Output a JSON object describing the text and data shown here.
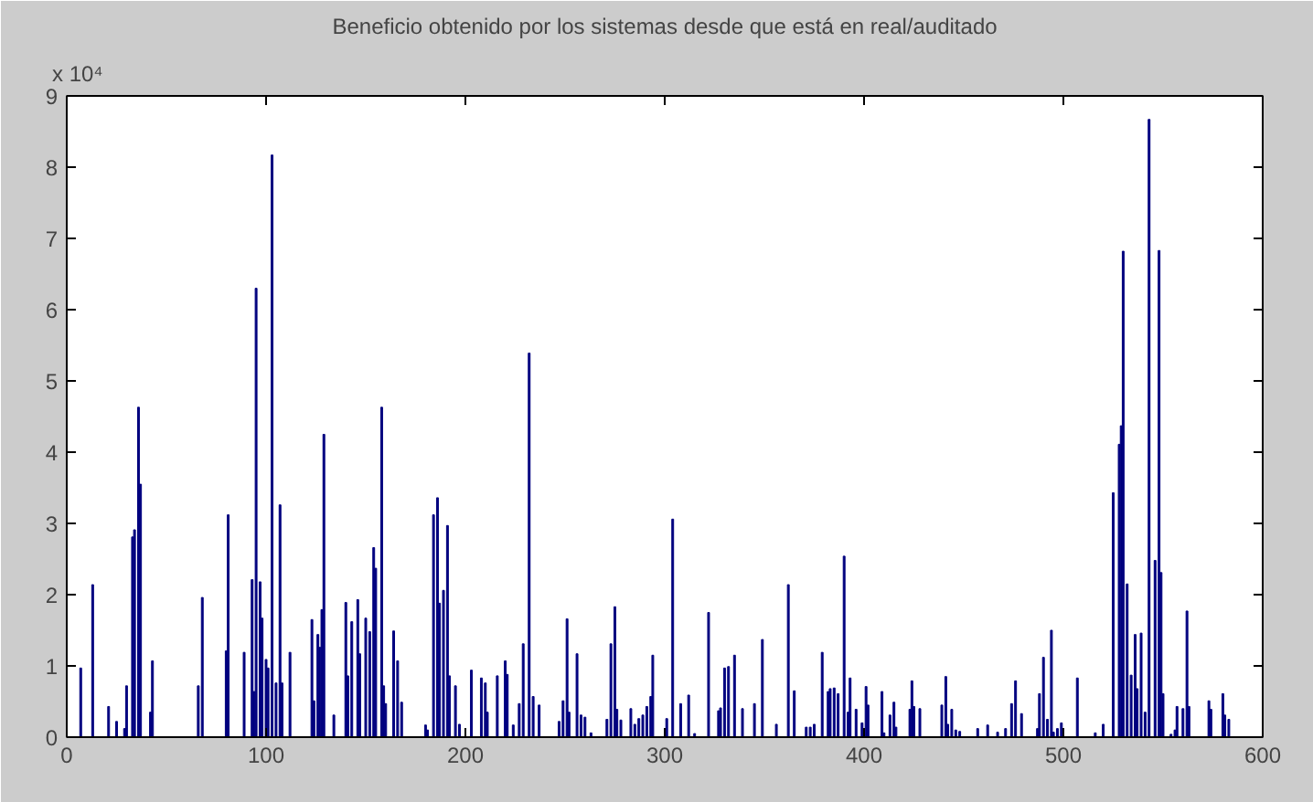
{
  "chart_data": {
    "type": "bar",
    "title": "Beneficio obtenido por los sistemas desde que está en real/auditado",
    "annotations": [
      "x 10⁴"
    ],
    "color": "#00007f",
    "xlim": [
      0,
      600
    ],
    "ylim": [
      0,
      9
    ],
    "xticks": [
      0,
      100,
      200,
      300,
      400,
      500,
      600
    ],
    "yticks": [
      0,
      1,
      2,
      3,
      4,
      5,
      6,
      7,
      8,
      9
    ],
    "grid": false,
    "x": [
      7,
      13,
      21,
      25,
      29,
      30,
      33,
      34,
      36,
      37,
      42,
      43,
      66,
      68,
      80,
      81,
      89,
      93,
      94,
      95,
      97,
      98,
      100,
      101,
      103,
      105,
      107,
      108,
      112,
      123,
      124,
      126,
      127,
      128,
      129,
      134,
      140,
      141,
      143,
      146,
      147,
      150,
      152,
      154,
      155,
      158,
      159,
      160,
      164,
      166,
      168,
      180,
      181,
      184,
      186,
      187,
      189,
      191,
      192,
      195,
      197,
      203,
      208,
      210,
      211,
      216,
      220,
      221,
      224,
      227,
      229,
      232,
      234,
      237,
      247,
      249,
      251,
      252,
      256,
      258,
      260,
      263,
      271,
      273,
      275,
      276,
      278,
      283,
      285,
      287,
      289,
      291,
      293,
      294,
      301,
      304,
      308,
      312,
      315,
      322,
      327,
      328,
      330,
      332,
      335,
      339,
      345,
      349,
      356,
      362,
      365,
      371,
      373,
      375,
      379,
      382,
      383,
      385,
      387,
      390,
      392,
      393,
      396,
      399,
      401,
      402,
      409,
      410,
      413,
      415,
      416,
      423,
      424,
      425,
      428,
      439,
      441,
      442,
      444,
      446,
      448,
      457,
      462,
      467,
      471,
      474,
      476,
      479,
      487,
      488,
      490,
      492,
      494,
      495,
      497,
      499,
      507,
      516,
      520,
      525,
      528,
      529,
      530,
      532,
      534,
      536,
      537,
      539,
      541,
      543,
      546,
      548,
      549,
      550,
      554,
      556,
      557,
      560,
      562,
      563,
      573,
      574,
      580,
      581,
      583
    ],
    "values": [
      0.97,
      2.14,
      0.43,
      0.22,
      0.12,
      0.72,
      2.81,
      2.91,
      4.63,
      3.55,
      0.35,
      1.07,
      0.72,
      1.96,
      1.21,
      3.12,
      1.19,
      2.21,
      0.64,
      6.3,
      2.18,
      1.67,
      1.09,
      0.97,
      8.17,
      0.76,
      3.26,
      0.76,
      1.19,
      1.65,
      0.51,
      1.44,
      1.26,
      1.79,
      4.25,
      0.31,
      1.89,
      0.86,
      1.62,
      1.93,
      1.17,
      1.67,
      1.48,
      2.66,
      2.37,
      4.63,
      0.72,
      0.47,
      1.49,
      1.07,
      0.49,
      0.17,
      0.1,
      3.12,
      3.36,
      1.88,
      2.06,
      2.97,
      0.86,
      0.72,
      0.18,
      0.94,
      0.83,
      0.76,
      0.35,
      0.86,
      1.07,
      0.88,
      0.17,
      0.47,
      1.31,
      5.39,
      0.57,
      0.45,
      0.22,
      0.51,
      1.66,
      0.35,
      1.17,
      0.31,
      0.28,
      0.06,
      0.25,
      1.31,
      1.83,
      0.39,
      0.24,
      0.4,
      0.18,
      0.26,
      0.31,
      0.43,
      0.57,
      1.15,
      0.26,
      3.06,
      0.47,
      0.59,
      0.05,
      1.75,
      0.37,
      0.41,
      0.97,
      0.99,
      1.15,
      0.4,
      0.47,
      1.37,
      0.18,
      2.14,
      0.65,
      0.14,
      0.14,
      0.18,
      1.19,
      0.64,
      0.68,
      0.69,
      0.61,
      2.54,
      0.35,
      0.83,
      0.39,
      0.2,
      0.71,
      0.45,
      0.64,
      0.06,
      0.31,
      0.49,
      0.14,
      0.39,
      0.79,
      0.43,
      0.4,
      0.45,
      0.85,
      0.18,
      0.39,
      0.1,
      0.08,
      0.12,
      0.17,
      0.07,
      0.12,
      0.47,
      0.79,
      0.33,
      0.12,
      0.61,
      1.12,
      0.25,
      1.5,
      0.07,
      0.12,
      0.2,
      0.83,
      0.06,
      0.18,
      3.43,
      4.11,
      4.37,
      6.82,
      2.15,
      0.87,
      1.44,
      0.68,
      1.46,
      0.35,
      8.67,
      2.48,
      6.83,
      2.31,
      0.61,
      0.04,
      0.1,
      0.43,
      0.4,
      1.77,
      0.43,
      0.51,
      0.39,
      0.61,
      0.31,
      0.25
    ]
  }
}
